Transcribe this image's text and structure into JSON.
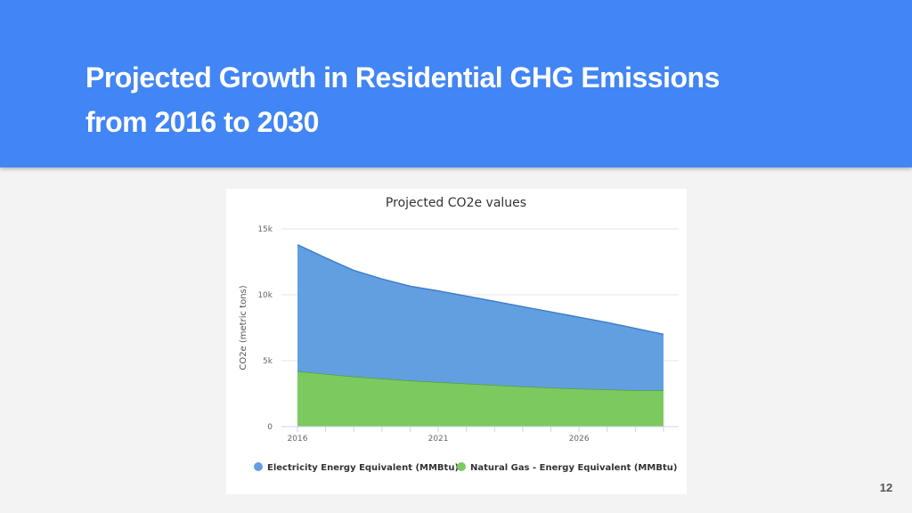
{
  "slide": {
    "title_lines": [
      "Projected Growth in Residential GHG Emissions",
      "from 2016 to 2030"
    ],
    "page_number": "12",
    "header_color": "#4285f4"
  },
  "chart_data": {
    "type": "area",
    "stacked": true,
    "title": "Projected CO2e values",
    "xlabel": "",
    "ylabel": "CO2e (metric tons)",
    "x": [
      2016,
      2017,
      2018,
      2019,
      2020,
      2021,
      2022,
      2023,
      2024,
      2025,
      2026,
      2027,
      2028,
      2029
    ],
    "x_ticks": [
      2016,
      2021,
      2026
    ],
    "x_tick_labels": [
      "2016",
      "2021",
      "2026"
    ],
    "xlim": [
      2016,
      2030
    ],
    "y_ticks": [
      0,
      5000,
      10000,
      15000
    ],
    "y_tick_labels": [
      "0",
      "5k",
      "10k",
      "15k"
    ],
    "ylim": [
      0,
      15000
    ],
    "grid": true,
    "legend_position": "bottom",
    "series": [
      {
        "name": "Natural Gas - Energy Equivalent (MMBtu)",
        "color": "#7cc95f",
        "values": [
          4200,
          4000,
          3800,
          3650,
          3500,
          3380,
          3270,
          3160,
          3050,
          2950,
          2880,
          2820,
          2760,
          2750
        ]
      },
      {
        "name": "Electricity Energy Equivalent (MMBtu)",
        "color": "#629fe1",
        "values": [
          9600,
          8800,
          8050,
          7550,
          7150,
          6920,
          6630,
          6340,
          6050,
          5750,
          5420,
          5080,
          4690,
          4250
        ]
      }
    ]
  }
}
